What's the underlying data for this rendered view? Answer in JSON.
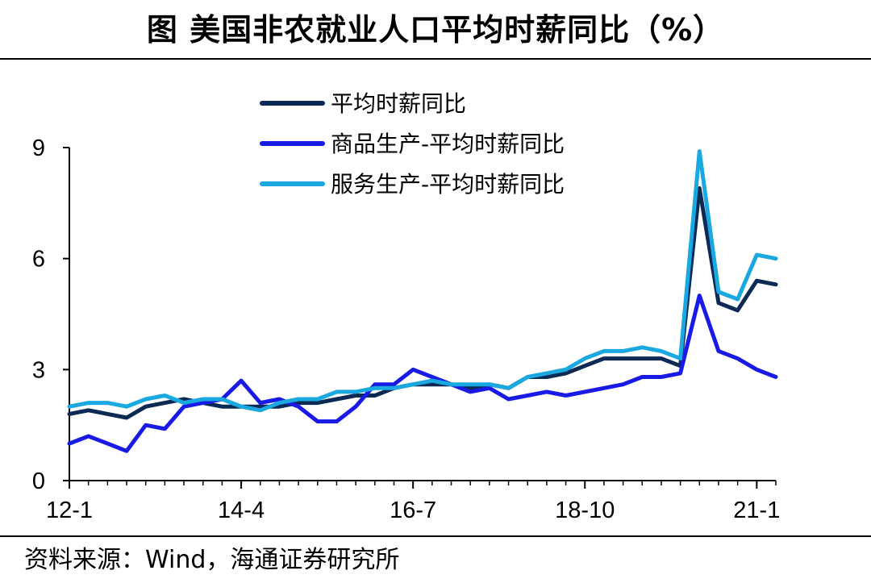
{
  "title": "图  美国非农就业人口平均时薪同比（%）",
  "source": "资料来源：Wind，海通证券研究所",
  "colors": {
    "overall": "#0d2a55",
    "goods": "#1a1ae6",
    "services": "#1aa8e0"
  },
  "chart_data": {
    "type": "line",
    "title": "美国非农就业人口平均时薪同比（%）",
    "xlabel": "",
    "ylabel": "",
    "ylim": [
      0,
      9
    ],
    "yticks": [
      "0",
      "3",
      "6",
      "9"
    ],
    "xticks": [
      "12-1",
      "14-4",
      "16-7",
      "18-10",
      "21-1"
    ],
    "legend_position": "top",
    "x": [
      "12-1",
      "12-4",
      "12-7",
      "12-10",
      "13-1",
      "13-4",
      "13-7",
      "13-10",
      "14-1",
      "14-4",
      "14-7",
      "14-10",
      "15-1",
      "15-4",
      "15-7",
      "15-10",
      "16-1",
      "16-4",
      "16-7",
      "16-10",
      "17-1",
      "17-4",
      "17-7",
      "17-10",
      "18-1",
      "18-4",
      "18-7",
      "18-10",
      "19-1",
      "19-4",
      "19-7",
      "19-10",
      "20-1",
      "20-4",
      "20-7",
      "20-10",
      "21-1",
      "21-3"
    ],
    "series": [
      {
        "name": "平均时薪同比",
        "values": [
          1.8,
          1.9,
          1.8,
          1.7,
          2.0,
          2.1,
          2.2,
          2.1,
          2.0,
          2.0,
          2.0,
          2.0,
          2.1,
          2.1,
          2.2,
          2.3,
          2.3,
          2.5,
          2.6,
          2.6,
          2.6,
          2.5,
          2.6,
          2.5,
          2.8,
          2.8,
          2.9,
          3.1,
          3.3,
          3.3,
          3.3,
          3.3,
          3.1,
          7.9,
          4.8,
          4.6,
          5.4,
          5.3
        ]
      },
      {
        "name": "商品生产-平均时薪同比",
        "values": [
          1.0,
          1.2,
          1.0,
          0.8,
          1.5,
          1.4,
          2.0,
          2.1,
          2.2,
          2.7,
          2.1,
          2.2,
          2.0,
          1.6,
          1.6,
          2.0,
          2.6,
          2.6,
          3.0,
          2.8,
          2.6,
          2.4,
          2.5,
          2.2,
          2.3,
          2.4,
          2.3,
          2.4,
          2.5,
          2.6,
          2.8,
          2.8,
          2.9,
          5.0,
          3.5,
          3.3,
          3.0,
          2.8
        ]
      },
      {
        "name": "服务生产-平均时薪同比",
        "values": [
          2.0,
          2.1,
          2.1,
          2.0,
          2.2,
          2.3,
          2.1,
          2.2,
          2.2,
          2.0,
          1.9,
          2.1,
          2.2,
          2.2,
          2.4,
          2.4,
          2.5,
          2.5,
          2.6,
          2.7,
          2.6,
          2.6,
          2.6,
          2.5,
          2.8,
          2.9,
          3.0,
          3.3,
          3.5,
          3.5,
          3.6,
          3.5,
          3.3,
          8.9,
          5.1,
          4.9,
          6.1,
          6.0
        ]
      }
    ]
  }
}
